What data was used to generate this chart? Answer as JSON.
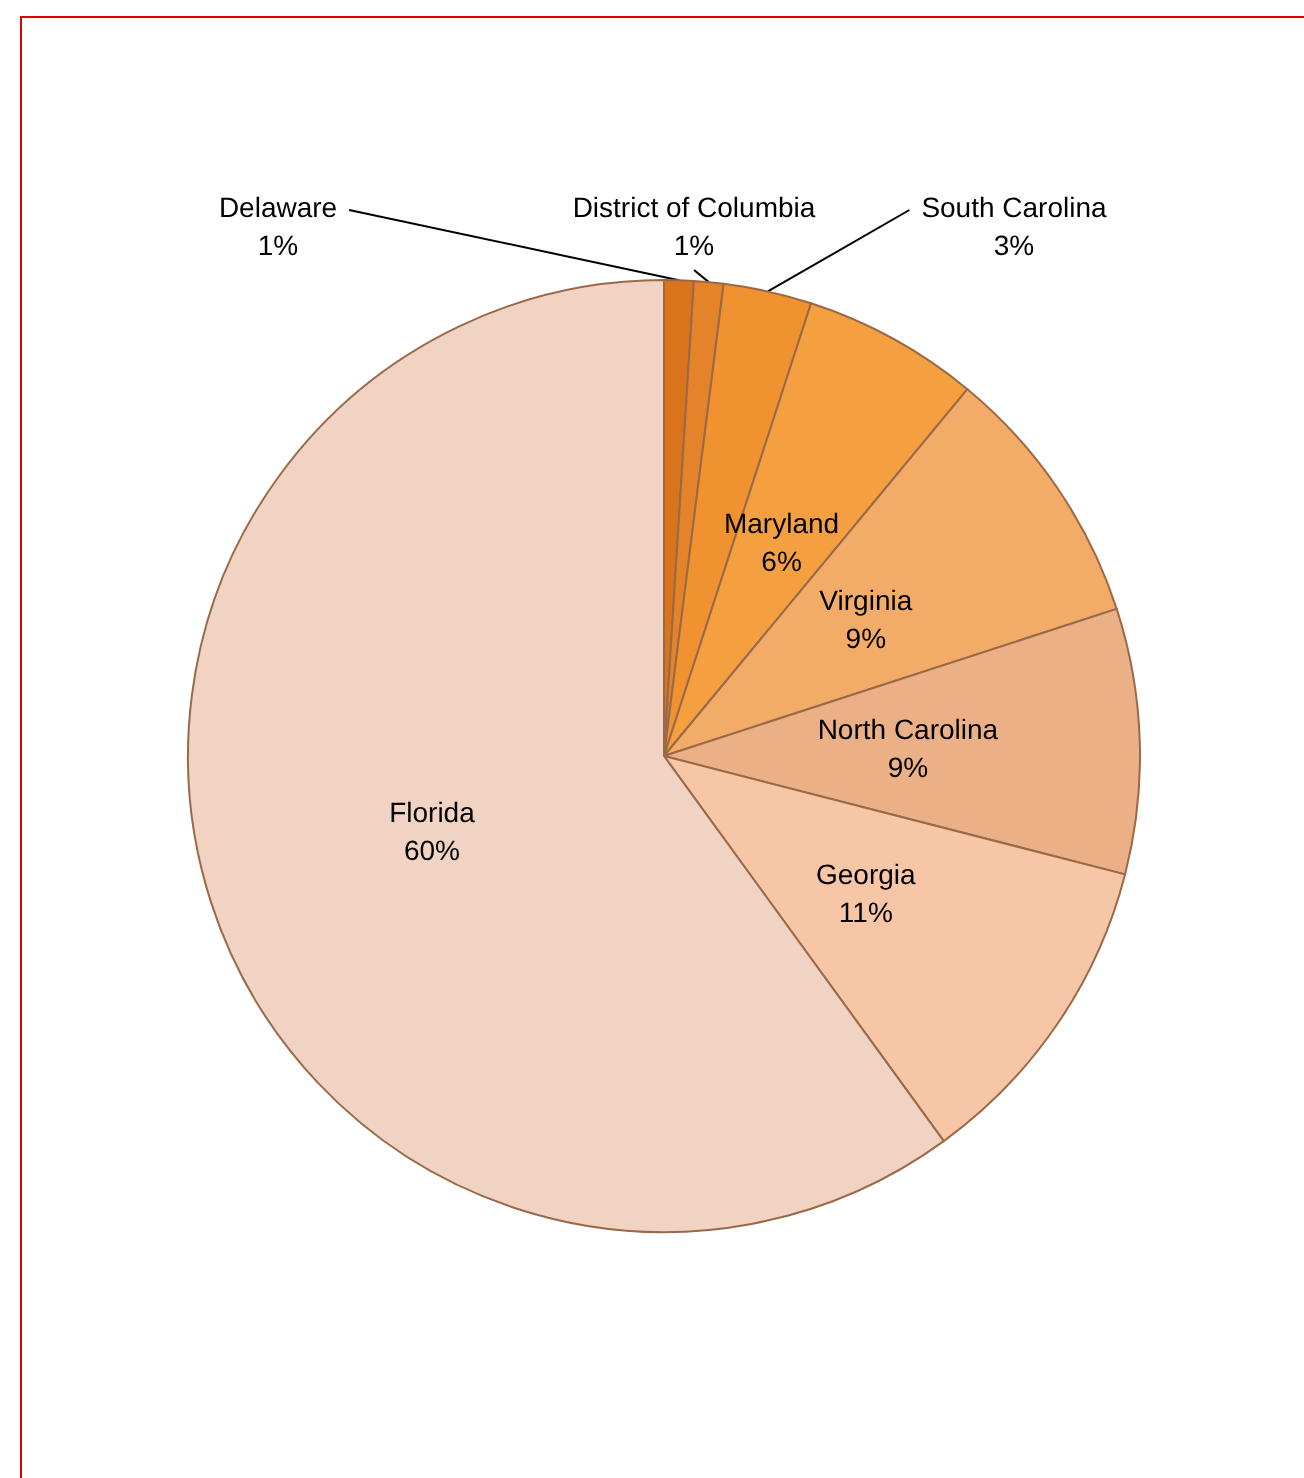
{
  "chart_data": {
    "type": "pie",
    "categories": [
      "Delaware",
      "District of Columbia",
      "South Carolina",
      "Maryland",
      "Virginia",
      "North Carolina",
      "Georgia",
      "Florida"
    ],
    "values": [
      1,
      1,
      3,
      6,
      9,
      9,
      11,
      60
    ],
    "value_labels": [
      "1%",
      "1%",
      "3%",
      "6%",
      "9%",
      "9%",
      "11%",
      "60%"
    ],
    "colors": [
      "#d9731c",
      "#e5832a",
      "#ef922f",
      "#f4a040",
      "#f2ac68",
      "#ecb087",
      "#f6c6a6",
      "#f1d3c3"
    ]
  }
}
